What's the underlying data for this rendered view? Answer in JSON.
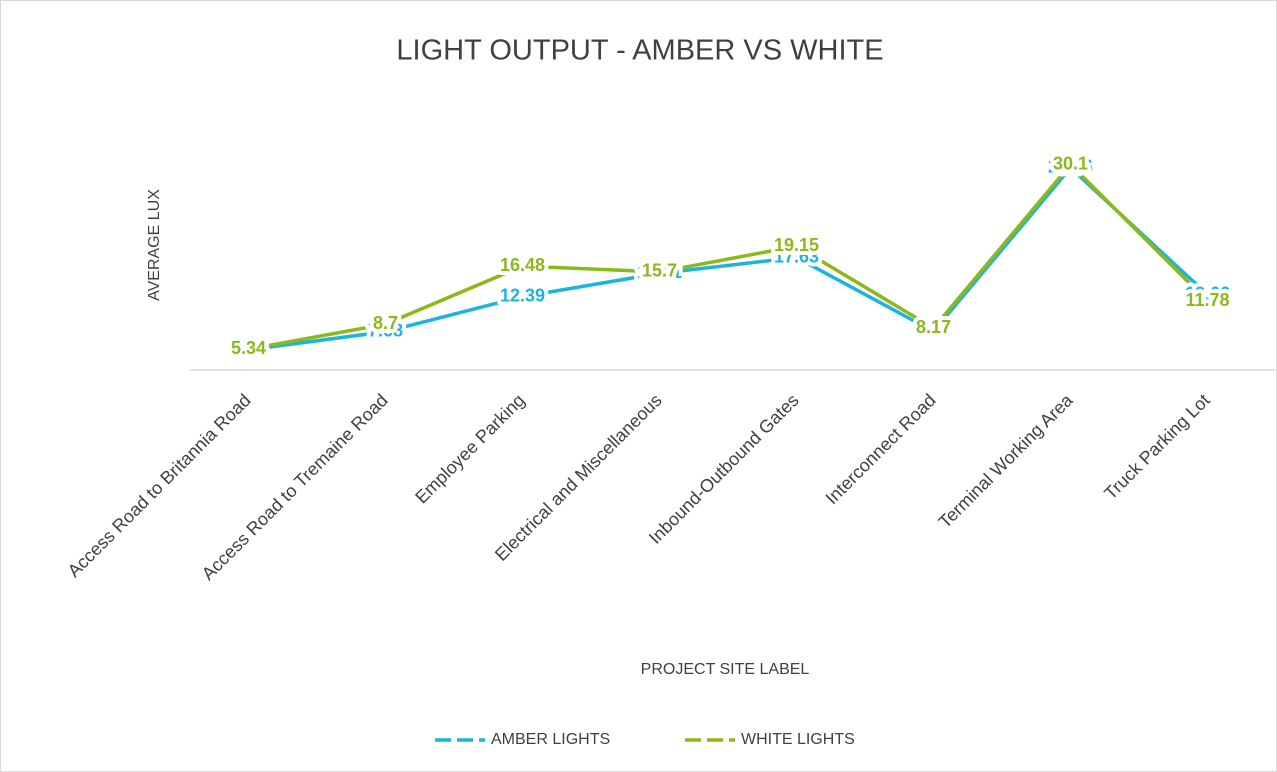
{
  "chart_data": {
    "type": "line",
    "title": "LIGHT OUTPUT - AMBER VS WHITE",
    "y_label": "AVERAGE LUX",
    "x_label": "PROJECT SITE LABEL",
    "categories": [
      "Access Road to Britannia Road",
      "Access Road to Tremaine Road",
      "Employee Parking",
      "Electrical and Miscellaneous",
      "Inbound-Outbound Gates",
      "Interconnect Road",
      "Terminal Working Area",
      "Truck Parking Lot"
    ],
    "series": [
      {
        "name": "AMBER LIGHTS",
        "color": "#1cb4de",
        "values": [
          5.26,
          7.68,
          12.39,
          15.51,
          17.63,
          7.73,
          29.66,
          12.66
        ]
      },
      {
        "name": "WHITE LIGHTS",
        "color": "#8cb81c",
        "values": [
          5.34,
          8.7,
          16.48,
          15.7,
          19.15,
          8.17,
          30.1,
          11.78
        ]
      }
    ],
    "ylim": [
      0,
      35
    ],
    "legend": "bottom"
  }
}
